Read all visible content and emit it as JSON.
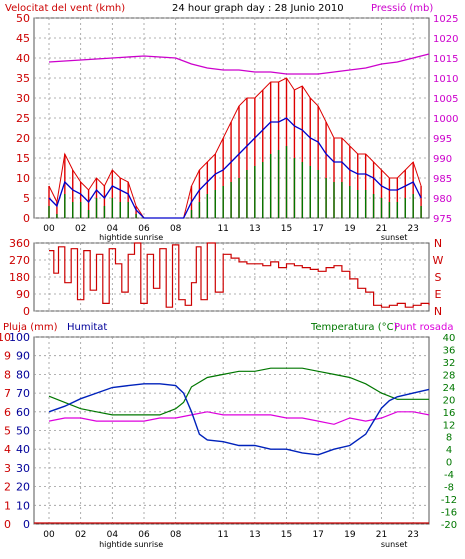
{
  "header": {
    "wind_title": "Velocitat del vent (kmh)",
    "graph_title": "24 hour graph day : 28 Junio 2010",
    "pressure_title": "Pressió (mb)"
  },
  "colors": {
    "wind_gust": "#dd0000",
    "wind_avg": "#0000cc",
    "wind_min": "#007700",
    "pressure": "#cc00cc",
    "direction": "#cc0000",
    "humidity": "#0022bb",
    "temperature": "#007700",
    "dewpoint": "#dd00dd",
    "rain": "#cc0000"
  },
  "chart_data": [
    {
      "type": "line",
      "name": "wind_pressure",
      "title": "24 hour graph day : 28 Junio 2010",
      "ylabel_left": "Velocitat del vent (kmh)",
      "ylabel_right": "Pressió (mb)",
      "ylim_left": [
        0,
        50
      ],
      "ylim_right": [
        975,
        1025
      ],
      "left_ticks": [
        "0",
        "5",
        "10",
        "15",
        "20",
        "25",
        "30",
        "35",
        "40",
        "45",
        "50"
      ],
      "right_ticks": [
        "975",
        "980",
        "985",
        "990",
        "995",
        "1000",
        "1005",
        "1010",
        "1015",
        "1020",
        "1025"
      ],
      "x_ticks": [
        "00",
        "02",
        "04",
        "06",
        "08",
        "11",
        "13",
        "15",
        "17",
        "19",
        "21",
        "23"
      ],
      "x_annotations": [
        "hightide",
        "sunrise",
        "sunset"
      ],
      "series": [
        {
          "key": "gust",
          "x": [
            0,
            0.5,
            1,
            1.5,
            2,
            2.5,
            3,
            3.5,
            4,
            4.5,
            5,
            5.5,
            6,
            6.5,
            7,
            7.5,
            8,
            8.5,
            9,
            9.5,
            10,
            10.5,
            11,
            11.5,
            12,
            12.5,
            13,
            13.5,
            14,
            14.5,
            15,
            15.5,
            16,
            16.5,
            17,
            17.5,
            18,
            18.5,
            19,
            19.5,
            20,
            20.5,
            21,
            21.5,
            22,
            22.5,
            23,
            23.5
          ],
          "values": [
            8,
            4,
            16,
            12,
            9,
            7,
            10,
            8,
            12,
            10,
            9,
            3,
            0,
            0,
            0,
            0,
            0,
            0,
            8,
            12,
            14,
            16,
            20,
            24,
            28,
            30,
            30,
            32,
            34,
            34,
            35,
            32,
            33,
            30,
            28,
            24,
            20,
            20,
            18,
            16,
            16,
            14,
            12,
            10,
            10,
            12,
            14,
            8
          ]
        },
        {
          "key": "avg",
          "x": [
            0,
            0.5,
            1,
            1.5,
            2,
            2.5,
            3,
            3.5,
            4,
            4.5,
            5,
            5.5,
            6,
            6.5,
            7,
            7.5,
            8,
            8.5,
            9,
            9.5,
            10,
            10.5,
            11,
            11.5,
            12,
            12.5,
            13,
            13.5,
            14,
            14.5,
            15,
            15.5,
            16,
            16.5,
            17,
            17.5,
            18,
            18.5,
            19,
            19.5,
            20,
            20.5,
            21,
            21.5,
            22,
            22.5,
            23,
            23.5
          ],
          "values": [
            5,
            3,
            9,
            7,
            6,
            4,
            7,
            5,
            8,
            7,
            6,
            2,
            0,
            0,
            0,
            0,
            0,
            0,
            4,
            7,
            9,
            11,
            12,
            14,
            16,
            18,
            20,
            22,
            24,
            24,
            25,
            23,
            22,
            20,
            19,
            16,
            14,
            14,
            12,
            11,
            11,
            10,
            8,
            7,
            7,
            8,
            9,
            5
          ]
        },
        {
          "key": "min",
          "x": [
            0,
            0.5,
            1,
            1.5,
            2,
            2.5,
            3,
            3.5,
            4,
            4.5,
            5,
            5.5,
            6,
            6.5,
            7,
            7.5,
            8,
            8.5,
            9,
            9.5,
            10,
            10.5,
            11,
            11.5,
            12,
            12.5,
            13,
            13.5,
            14,
            14.5,
            15,
            15.5,
            16,
            16.5,
            17,
            17.5,
            18,
            18.5,
            19,
            19.5,
            20,
            20.5,
            21,
            21.5,
            22,
            22.5,
            23,
            23.5
          ],
          "values": [
            3,
            1,
            6,
            4,
            4,
            2,
            5,
            3,
            5,
            4,
            4,
            1,
            0,
            0,
            0,
            0,
            0,
            0,
            2,
            4,
            6,
            7,
            8,
            9,
            10,
            12,
            13,
            14,
            16,
            17,
            18,
            15,
            14,
            13,
            12,
            10,
            9,
            9,
            8,
            7,
            7,
            6,
            5,
            4,
            4,
            5,
            6,
            3
          ]
        },
        {
          "key": "pressure",
          "x": [
            0,
            2,
            4,
            6,
            8,
            9,
            10,
            11,
            12,
            13,
            14,
            15,
            16,
            17,
            18,
            19,
            20,
            21,
            22,
            23,
            24
          ],
          "values": [
            1014,
            1014.5,
            1015,
            1015.5,
            1015,
            1013.5,
            1012.5,
            1012,
            1012,
            1011.5,
            1011.5,
            1011,
            1011,
            1011,
            1011.5,
            1012,
            1012.5,
            1013.5,
            1014,
            1015,
            1016
          ]
        }
      ]
    },
    {
      "type": "line",
      "name": "wind_direction",
      "left_ticks": [
        "0",
        "90",
        "180",
        "270",
        "360"
      ],
      "right_ticks": [
        "N",
        "E",
        "S",
        "W",
        "N"
      ],
      "ylim": [
        0,
        360
      ],
      "series": [
        {
          "key": "direction",
          "x": [
            0,
            0.3,
            0.6,
            1,
            1.4,
            1.8,
            2.2,
            2.6,
            3,
            3.4,
            3.8,
            4.2,
            4.6,
            5,
            5.4,
            5.8,
            6.2,
            6.6,
            7,
            7.4,
            7.8,
            8.2,
            8.6,
            9,
            9.3,
            9.6,
            10,
            10.5,
            11,
            11.5,
            12,
            12.5,
            13,
            13.5,
            14,
            14.5,
            15,
            15.5,
            16,
            16.5,
            17,
            17.5,
            18,
            18.5,
            19,
            19.5,
            20,
            20.5,
            21,
            21.5,
            22,
            22.5,
            23,
            23.5,
            24
          ],
          "values": [
            320,
            200,
            340,
            150,
            330,
            60,
            320,
            110,
            300,
            40,
            330,
            250,
            100,
            300,
            360,
            40,
            300,
            120,
            330,
            20,
            350,
            60,
            30,
            150,
            340,
            60,
            360,
            100,
            300,
            280,
            260,
            250,
            250,
            240,
            260,
            230,
            250,
            240,
            230,
            220,
            210,
            230,
            240,
            210,
            170,
            120,
            100,
            30,
            20,
            30,
            40,
            20,
            30,
            40,
            30
          ]
        }
      ]
    },
    {
      "type": "line",
      "name": "humidity_temperature",
      "left_labels": [
        "Pluja (mm)",
        "Humitat"
      ],
      "right_labels": [
        "Temperatura (°C)",
        "Punt rosada"
      ],
      "rain_ticks": [
        "0",
        "1",
        "2",
        "3",
        "4",
        "5",
        "6",
        "7",
        "8",
        "9",
        "10"
      ],
      "humidity_ticks": [
        "0",
        "10",
        "20",
        "30",
        "40",
        "50",
        "60",
        "70",
        "80",
        "90",
        "100"
      ],
      "temp_ticks": [
        "-20",
        "-16",
        "-12",
        "-8",
        "-4",
        "0",
        "4",
        "8",
        "12",
        "16",
        "20",
        "24",
        "28",
        "32",
        "36",
        "40"
      ],
      "ylim_humidity": [
        0,
        100
      ],
      "ylim_temperature": [
        -20,
        40
      ],
      "x_ticks": [
        "00",
        "02",
        "04",
        "06",
        "08",
        "11",
        "13",
        "15",
        "17",
        "19",
        "21",
        "23"
      ],
      "x_annotations": [
        "hightide",
        "sunrise",
        "sunset"
      ],
      "series": [
        {
          "key": "humidity",
          "x": [
            0,
            1,
            2,
            3,
            4,
            5,
            6,
            7,
            8,
            8.5,
            9,
            9.5,
            10,
            11,
            12,
            13,
            14,
            15,
            16,
            17,
            18,
            19,
            20,
            20.5,
            21,
            21.5,
            22,
            23,
            24
          ],
          "values": [
            60,
            63,
            67,
            70,
            73,
            74,
            75,
            75,
            74,
            70,
            60,
            48,
            45,
            44,
            42,
            42,
            40,
            40,
            38,
            37,
            40,
            42,
            48,
            55,
            62,
            66,
            68,
            70,
            72
          ]
        },
        {
          "key": "temperature",
          "x": [
            0,
            1,
            2,
            3,
            4,
            5,
            6,
            7,
            8,
            8.5,
            9,
            10,
            11,
            12,
            13,
            14,
            15,
            16,
            17,
            18,
            19,
            20,
            21,
            22,
            23,
            24
          ],
          "values": [
            21,
            19,
            17,
            16,
            15,
            15,
            15,
            15,
            17,
            19,
            24,
            27,
            28,
            29,
            29,
            30,
            30,
            30,
            29,
            28,
            27,
            25,
            22,
            20,
            20,
            20
          ]
        },
        {
          "key": "dewpoint",
          "x": [
            0,
            1,
            2,
            3,
            4,
            5,
            6,
            7,
            8,
            9,
            10,
            11,
            12,
            13,
            14,
            15,
            16,
            17,
            18,
            19,
            20,
            21,
            22,
            23,
            24
          ],
          "values": [
            13,
            14,
            14,
            13,
            13,
            13,
            13,
            14,
            14,
            15,
            16,
            15,
            15,
            15,
            15,
            14,
            14,
            13,
            12,
            14,
            13,
            14,
            16,
            16,
            15
          ]
        },
        {
          "key": "rain",
          "x": [
            0,
            24
          ],
          "values": [
            0,
            0
          ]
        }
      ]
    }
  ]
}
